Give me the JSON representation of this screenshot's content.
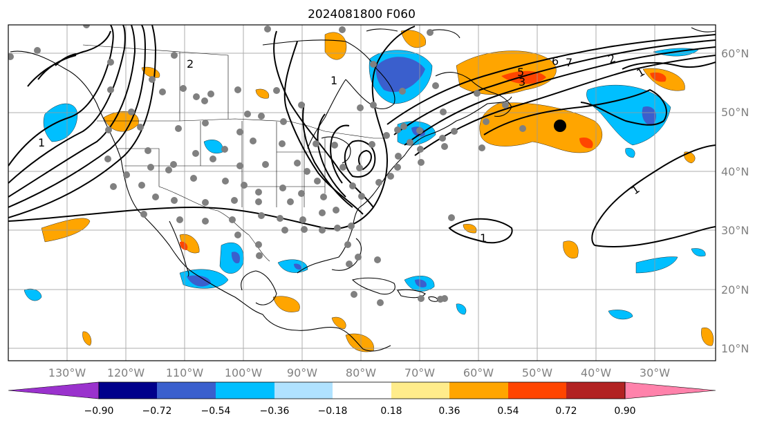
{
  "title": "2024081800 F060",
  "lat_labels": [
    "60°N",
    "50°N",
    "40°N",
    "30°N",
    "20°N",
    "10°N"
  ],
  "lon_labels": [
    "130°W",
    "120°W",
    "110°W",
    "100°W",
    "90°W",
    "80°W",
    "70°W",
    "60°W",
    "50°W",
    "40°W",
    "30°W"
  ],
  "colorbar": {
    "ticks": [
      "−0.90",
      "−0.72",
      "−0.54",
      "−0.36",
      "−0.18",
      "0.18",
      "0.36",
      "0.54",
      "0.72",
      "0.90"
    ],
    "colors": [
      "#9a32cd",
      "#00008b",
      "#3a5fcd",
      "#00bfff",
      "#b0e2ff",
      "#ffffff",
      "#ffec8b",
      "#ffa500",
      "#ff4500",
      "#b22222",
      "#ff82ab"
    ]
  },
  "contour_labels": [
    "1",
    "1",
    "1",
    "1",
    "1",
    "2",
    "2",
    "3",
    "5",
    "6",
    "7"
  ],
  "colors": {
    "warm": "#ffa500",
    "warm_strong": "#ff4500",
    "cold": "#00bfff",
    "cold_mid": "#3a5fcd",
    "station": "#808080",
    "marker": "#000000"
  }
}
